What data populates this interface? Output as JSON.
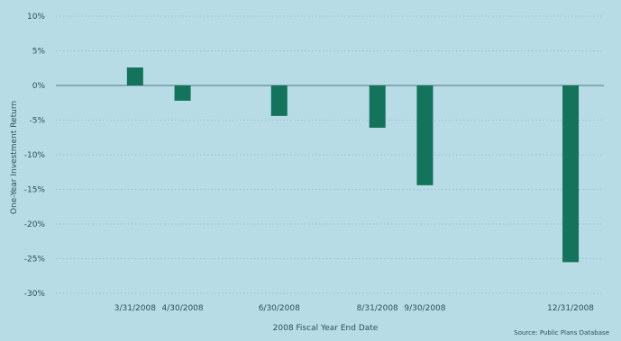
{
  "chart_data": {
    "type": "bar",
    "categories": [
      "3/31/2008",
      "4/30/2008",
      "6/30/2008",
      "8/31/2008",
      "9/30/2008",
      "12/31/2008"
    ],
    "x_dates": [
      "2008-03-31",
      "2008-04-30",
      "2008-06-30",
      "2008-08-31",
      "2008-09-30",
      "2008-12-31"
    ],
    "values": [
      2.6,
      -2.2,
      -4.4,
      -6.1,
      -14.4,
      -25.5
    ],
    "xlabel": "2008 Fiscal Year End Date",
    "ylabel": "One-Year Investment Return",
    "ylim": [
      -30,
      10
    ],
    "yticks": [
      -30,
      -25,
      -20,
      -15,
      -10,
      -5,
      0,
      5,
      10
    ],
    "ytick_labels": [
      "-30%",
      "-25%",
      "-20%",
      "-15%",
      "-10%",
      "-5%",
      "0%",
      "5%",
      "10%"
    ],
    "grid": "horizontal-dashed",
    "colors": {
      "background": "#b8dce6",
      "bar": "#13735b",
      "grid": "#8fb6c0",
      "text": "#2f4f58"
    },
    "source": "Source: Public Plans Database"
  }
}
